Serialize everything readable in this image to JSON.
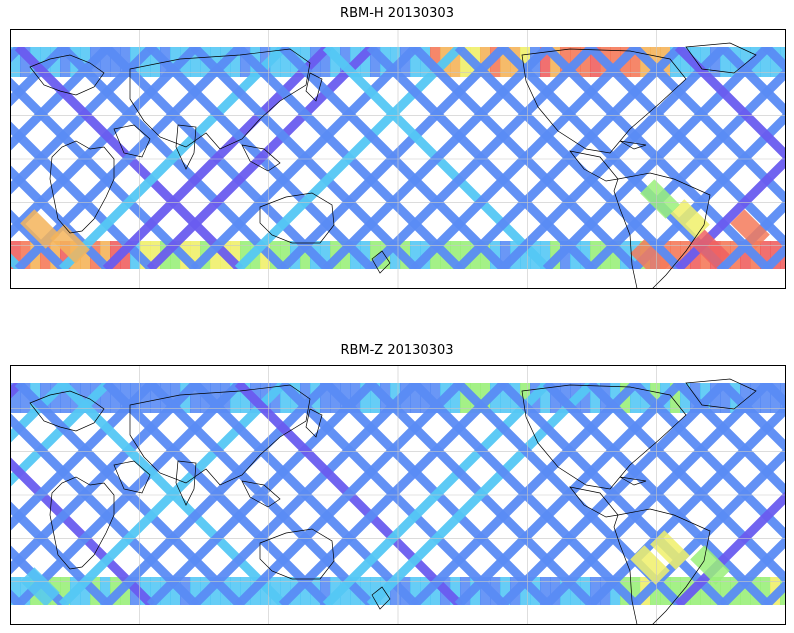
{
  "figure": {
    "panels": [
      {
        "title": "RBM-H 20130303",
        "variant": "h"
      },
      {
        "title": "RBM-Z 20130303",
        "variant": "z"
      }
    ]
  },
  "colors": {
    "frame": "#000000",
    "coast": "#000000",
    "grid": "#c8c8c8",
    "scale": [
      "#6a5cf0",
      "#5a8cf5",
      "#55c8f5",
      "#9af07a",
      "#f0f06a",
      "#f5b45a",
      "#f57a5a",
      "#f06060"
    ]
  },
  "map_info": {
    "projection": "equirectangular",
    "gridlines": true,
    "colorbar": false
  }
}
